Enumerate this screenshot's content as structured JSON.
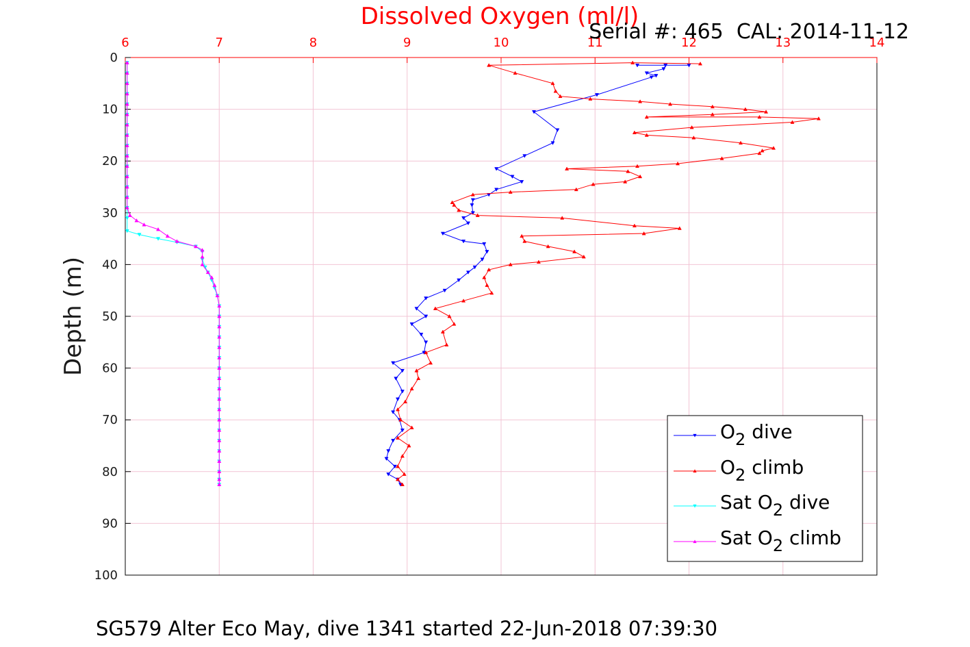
{
  "chart_data": {
    "type": "line",
    "title": "Dissolved Oxygen (ml/l)",
    "subtitle": "Serial #: 465  CAL: 2014-11-12",
    "caption": "SG579 Alter Eco May, dive 1341 started 22-Jun-2018 07:39:30",
    "xlabel": "",
    "ylabel": "Depth (m)",
    "xlim": [
      6,
      14
    ],
    "ylim": [
      0,
      100
    ],
    "y_reversed": true,
    "x_axis_position": "top",
    "xticks": [
      "6",
      "7",
      "8",
      "9",
      "10",
      "11",
      "12",
      "13",
      "14"
    ],
    "yticks": [
      "0",
      "10",
      "20",
      "30",
      "40",
      "50",
      "60",
      "70",
      "80",
      "90",
      "100"
    ],
    "grid": true,
    "legend_position": "bottom-right",
    "colors": {
      "title": "#ff0000",
      "xticks": "#ff0000",
      "grid": "#f2c4d4"
    },
    "series": [
      {
        "name": "O2 dive",
        "legend": {
          "pre": "O",
          "sub": "2",
          "post": " dive"
        },
        "color": "#0000ff",
        "marker": "triangle-down",
        "points": [
          [
            11.45,
            1.5
          ],
          [
            12.0,
            1.5
          ],
          [
            11.75,
            1.5
          ],
          [
            11.73,
            2.2
          ],
          [
            11.55,
            3.0
          ],
          [
            11.65,
            3.5
          ],
          [
            11.6,
            3.8
          ],
          [
            11.02,
            7.2
          ],
          [
            10.35,
            10.5
          ],
          [
            10.6,
            14.0
          ],
          [
            10.55,
            16.5
          ],
          [
            10.25,
            19.0
          ],
          [
            9.95,
            21.5
          ],
          [
            10.12,
            23.0
          ],
          [
            10.22,
            24.0
          ],
          [
            9.95,
            25.5
          ],
          [
            9.87,
            26.5
          ],
          [
            9.7,
            27.5
          ],
          [
            9.69,
            28.5
          ],
          [
            9.7,
            30.0
          ],
          [
            9.6,
            31.0
          ],
          [
            9.65,
            32.0
          ],
          [
            9.38,
            34.0
          ],
          [
            9.6,
            35.5
          ],
          [
            9.82,
            36.0
          ],
          [
            9.85,
            37.5
          ],
          [
            9.8,
            39.0
          ],
          [
            9.72,
            40.5
          ],
          [
            9.65,
            41.5
          ],
          [
            9.55,
            43.0
          ],
          [
            9.4,
            45.0
          ],
          [
            9.2,
            46.5
          ],
          [
            9.1,
            48.5
          ],
          [
            9.2,
            50.0
          ],
          [
            9.05,
            51.5
          ],
          [
            9.15,
            53.5
          ],
          [
            9.2,
            55.0
          ],
          [
            9.18,
            57.0
          ],
          [
            8.85,
            59.0
          ],
          [
            8.95,
            60.5
          ],
          [
            8.88,
            62.0
          ],
          [
            8.95,
            64.5
          ],
          [
            8.9,
            66.0
          ],
          [
            8.85,
            68.5
          ],
          [
            8.92,
            70.0
          ],
          [
            8.95,
            72.0
          ],
          [
            8.85,
            74.0
          ],
          [
            8.8,
            76.0
          ],
          [
            8.78,
            77.5
          ],
          [
            8.87,
            79.0
          ],
          [
            8.8,
            80.5
          ],
          [
            8.9,
            81.5
          ],
          [
            8.93,
            82.5
          ]
        ]
      },
      {
        "name": "O2 climb",
        "legend": {
          "pre": "O",
          "sub": "2",
          "post": " climb"
        },
        "color": "#ff0000",
        "marker": "triangle-up",
        "points": [
          [
            8.95,
            82.5
          ],
          [
            8.9,
            81.5
          ],
          [
            8.97,
            80.5
          ],
          [
            8.9,
            79.0
          ],
          [
            8.95,
            77.0
          ],
          [
            9.02,
            75.0
          ],
          [
            8.9,
            73.5
          ],
          [
            9.05,
            71.5
          ],
          [
            8.93,
            70.0
          ],
          [
            8.9,
            68.0
          ],
          [
            8.98,
            66.5
          ],
          [
            9.05,
            64.0
          ],
          [
            9.12,
            62.0
          ],
          [
            9.1,
            60.5
          ],
          [
            9.25,
            59.0
          ],
          [
            9.2,
            57.0
          ],
          [
            9.42,
            55.5
          ],
          [
            9.38,
            53.0
          ],
          [
            9.5,
            51.5
          ],
          [
            9.45,
            50.0
          ],
          [
            9.3,
            48.5
          ],
          [
            9.6,
            47.0
          ],
          [
            9.9,
            45.5
          ],
          [
            9.85,
            44.0
          ],
          [
            9.82,
            42.5
          ],
          [
            9.87,
            41.0
          ],
          [
            10.1,
            40.0
          ],
          [
            10.4,
            39.5
          ],
          [
            10.88,
            38.5
          ],
          [
            10.78,
            37.5
          ],
          [
            10.5,
            36.5
          ],
          [
            10.25,
            35.5
          ],
          [
            10.22,
            34.5
          ],
          [
            11.52,
            34.0
          ],
          [
            11.9,
            33.0
          ],
          [
            11.42,
            32.5
          ],
          [
            10.65,
            31.0
          ],
          [
            9.75,
            30.5
          ],
          [
            9.55,
            29.5
          ],
          [
            9.5,
            28.5
          ],
          [
            9.48,
            28.0
          ],
          [
            9.7,
            26.5
          ],
          [
            10.1,
            26.0
          ],
          [
            10.8,
            25.5
          ],
          [
            10.98,
            24.5
          ],
          [
            11.32,
            24.0
          ],
          [
            11.48,
            23.0
          ],
          [
            11.35,
            22.0
          ],
          [
            10.7,
            21.5
          ],
          [
            11.45,
            21.0
          ],
          [
            11.88,
            20.5
          ],
          [
            12.35,
            19.5
          ],
          [
            12.75,
            18.5
          ],
          [
            12.78,
            18.0
          ],
          [
            12.9,
            17.5
          ],
          [
            12.55,
            16.5
          ],
          [
            12.05,
            15.5
          ],
          [
            11.55,
            15.0
          ],
          [
            11.42,
            14.5
          ],
          [
            12.03,
            13.5
          ],
          [
            13.1,
            12.5
          ],
          [
            13.38,
            11.8
          ],
          [
            12.75,
            11.5
          ],
          [
            11.55,
            11.5
          ],
          [
            12.25,
            11.0
          ],
          [
            12.82,
            10.5
          ],
          [
            12.6,
            10.0
          ],
          [
            12.25,
            9.5
          ],
          [
            11.8,
            9.0
          ],
          [
            11.48,
            8.5
          ],
          [
            10.95,
            8.0
          ],
          [
            10.63,
            7.5
          ],
          [
            10.58,
            6.5
          ],
          [
            10.55,
            5.0
          ],
          [
            10.15,
            3.0
          ],
          [
            9.87,
            1.5
          ],
          [
            11.4,
            1.0
          ],
          [
            12.12,
            1.2
          ]
        ]
      },
      {
        "name": "Sat O2 dive",
        "legend": {
          "pre": "Sat O",
          "sub": "2",
          "post": " dive"
        },
        "color": "#00ffff",
        "marker": "triangle-down",
        "points": [
          [
            6.02,
            1
          ],
          [
            6.02,
            3
          ],
          [
            6.02,
            5
          ],
          [
            6.02,
            7
          ],
          [
            6.02,
            9
          ],
          [
            6.02,
            11
          ],
          [
            6.02,
            13
          ],
          [
            6.02,
            15
          ],
          [
            6.02,
            17
          ],
          [
            6.02,
            19
          ],
          [
            6.02,
            21
          ],
          [
            6.02,
            23
          ],
          [
            6.02,
            25
          ],
          [
            6.02,
            27
          ],
          [
            6.02,
            29
          ],
          [
            6.02,
            31
          ],
          [
            6.02,
            33.5
          ],
          [
            6.15,
            34.2
          ],
          [
            6.35,
            35.0
          ],
          [
            6.55,
            35.7
          ],
          [
            6.75,
            36.5
          ],
          [
            6.82,
            37.5
          ],
          [
            6.82,
            39.0
          ],
          [
            6.85,
            40.5
          ],
          [
            6.88,
            41.5
          ],
          [
            6.92,
            43.0
          ],
          [
            6.95,
            44.5
          ],
          [
            6.98,
            46.0
          ],
          [
            7.0,
            48.0
          ],
          [
            7.0,
            50
          ],
          [
            7.0,
            52
          ],
          [
            7.0,
            54
          ],
          [
            7.0,
            56
          ],
          [
            7.0,
            58
          ],
          [
            7.0,
            60
          ],
          [
            7.0,
            62
          ],
          [
            7.0,
            64
          ],
          [
            7.0,
            66
          ],
          [
            7.0,
            68
          ],
          [
            7.0,
            70
          ],
          [
            7.0,
            72
          ],
          [
            7.0,
            74
          ],
          [
            7.0,
            76
          ],
          [
            7.0,
            78
          ],
          [
            7.0,
            80
          ],
          [
            7.0,
            81.5
          ],
          [
            7.0,
            82.5
          ]
        ]
      },
      {
        "name": "Sat O2 climb",
        "legend": {
          "pre": "Sat O",
          "sub": "2",
          "post": " climb"
        },
        "color": "#ff00ff",
        "marker": "triangle-up",
        "points": [
          [
            7.0,
            82.5
          ],
          [
            7.0,
            81.5
          ],
          [
            7.0,
            80
          ],
          [
            7.0,
            78
          ],
          [
            7.0,
            76
          ],
          [
            7.0,
            74
          ],
          [
            7.0,
            72
          ],
          [
            7.0,
            70
          ],
          [
            7.0,
            68
          ],
          [
            7.0,
            66
          ],
          [
            7.0,
            64
          ],
          [
            7.0,
            62
          ],
          [
            7.0,
            60
          ],
          [
            7.0,
            58
          ],
          [
            7.0,
            56
          ],
          [
            7.0,
            54
          ],
          [
            7.0,
            52
          ],
          [
            7.0,
            50
          ],
          [
            7.0,
            48
          ],
          [
            6.98,
            46.0
          ],
          [
            6.95,
            44.0
          ],
          [
            6.92,
            42.5
          ],
          [
            6.88,
            41.5
          ],
          [
            6.82,
            40.0
          ],
          [
            6.82,
            38.5
          ],
          [
            6.82,
            37.2
          ],
          [
            6.75,
            36.5
          ],
          [
            6.55,
            35.5
          ],
          [
            6.45,
            34.5
          ],
          [
            6.35,
            33.2
          ],
          [
            6.2,
            32.3
          ],
          [
            6.12,
            31.5
          ],
          [
            6.05,
            30.5
          ],
          [
            6.02,
            29
          ],
          [
            6.02,
            27
          ],
          [
            6.02,
            25
          ],
          [
            6.02,
            23
          ],
          [
            6.02,
            21
          ],
          [
            6.02,
            19
          ],
          [
            6.02,
            17
          ],
          [
            6.02,
            15
          ],
          [
            6.02,
            13
          ],
          [
            6.02,
            11
          ],
          [
            6.02,
            9
          ],
          [
            6.02,
            7
          ],
          [
            6.02,
            5
          ],
          [
            6.02,
            3
          ],
          [
            6.02,
            1
          ]
        ]
      }
    ]
  }
}
